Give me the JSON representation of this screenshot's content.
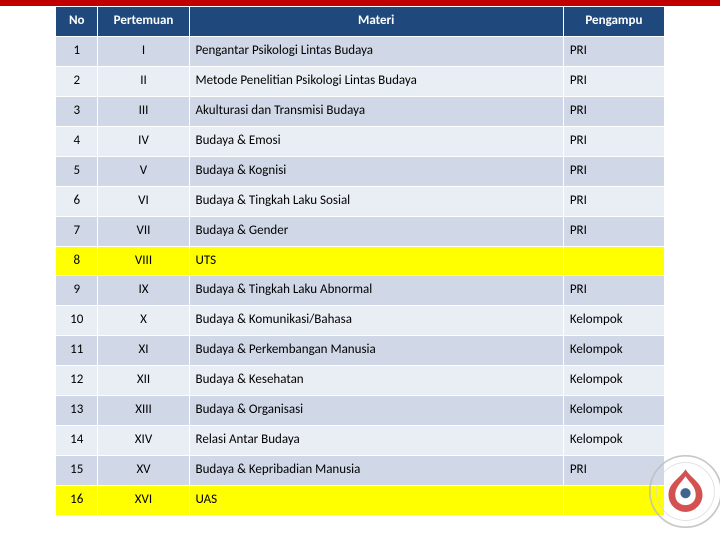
{
  "header": {
    "no": "No",
    "pertemuan": "Pertemuan",
    "materi": "Materi",
    "pengampu": "Pengampu"
  },
  "colors": {
    "top_bar": "#c00000",
    "header_bg": "#1f497d",
    "header_text": "#ffffff",
    "row_odd_bg": "#d0d8e8",
    "row_even_bg": "#e9edf4",
    "highlight_bg": "#ffff00",
    "border": "#ffffff"
  },
  "rows": [
    {
      "no": "1",
      "pertemuan": "I",
      "materi": "Pengantar Psikologi Lintas Budaya",
      "pengampu": "PRI",
      "highlight": false
    },
    {
      "no": "2",
      "pertemuan": "II",
      "materi": "Metode Penelitian Psikologi Lintas Budaya",
      "pengampu": "PRI",
      "highlight": false
    },
    {
      "no": "3",
      "pertemuan": "III",
      "materi": "Akulturasi dan Transmisi Budaya",
      "pengampu": "PRI",
      "highlight": false
    },
    {
      "no": "4",
      "pertemuan": "IV",
      "materi": "Budaya & Emosi",
      "pengampu": "PRI",
      "highlight": false
    },
    {
      "no": "5",
      "pertemuan": "V",
      "materi": "Budaya & Kognisi",
      "pengampu": "PRI",
      "highlight": false
    },
    {
      "no": "6",
      "pertemuan": "VI",
      "materi": "Budaya & Tingkah Laku Sosial",
      "pengampu": "PRI",
      "highlight": false
    },
    {
      "no": "7",
      "pertemuan": "VII",
      "materi": "Budaya & Gender",
      "pengampu": "PRI",
      "highlight": false
    },
    {
      "no": "8",
      "pertemuan": "VIII",
      "materi": "UTS",
      "pengampu": "",
      "highlight": true
    },
    {
      "no": "9",
      "pertemuan": "IX",
      "materi": "Budaya & Tingkah Laku Abnormal",
      "pengampu": "PRI",
      "highlight": false
    },
    {
      "no": "10",
      "pertemuan": "X",
      "materi": "Budaya & Komunikasi/Bahasa",
      "pengampu": "Kelompok",
      "highlight": false
    },
    {
      "no": "11",
      "pertemuan": "XI",
      "materi": "Budaya & Perkembangan Manusia",
      "pengampu": "Kelompok",
      "highlight": false
    },
    {
      "no": "12",
      "pertemuan": "XII",
      "materi": "Budaya & Kesehatan",
      "pengampu": "Kelompok",
      "highlight": false
    },
    {
      "no": "13",
      "pertemuan": "XIII",
      "materi": "Budaya & Organisasi",
      "pengampu": "Kelompok",
      "highlight": false
    },
    {
      "no": "14",
      "pertemuan": "XIV",
      "materi": "Relasi Antar Budaya",
      "pengampu": "Kelompok",
      "highlight": false
    },
    {
      "no": "15",
      "pertemuan": "XV",
      "materi": "Budaya & Kepribadian Manusia",
      "pengampu": "PRI",
      "highlight": false
    },
    {
      "no": "16",
      "pertemuan": "XVI",
      "materi": "UAS",
      "pengampu": "",
      "highlight": true
    }
  ]
}
